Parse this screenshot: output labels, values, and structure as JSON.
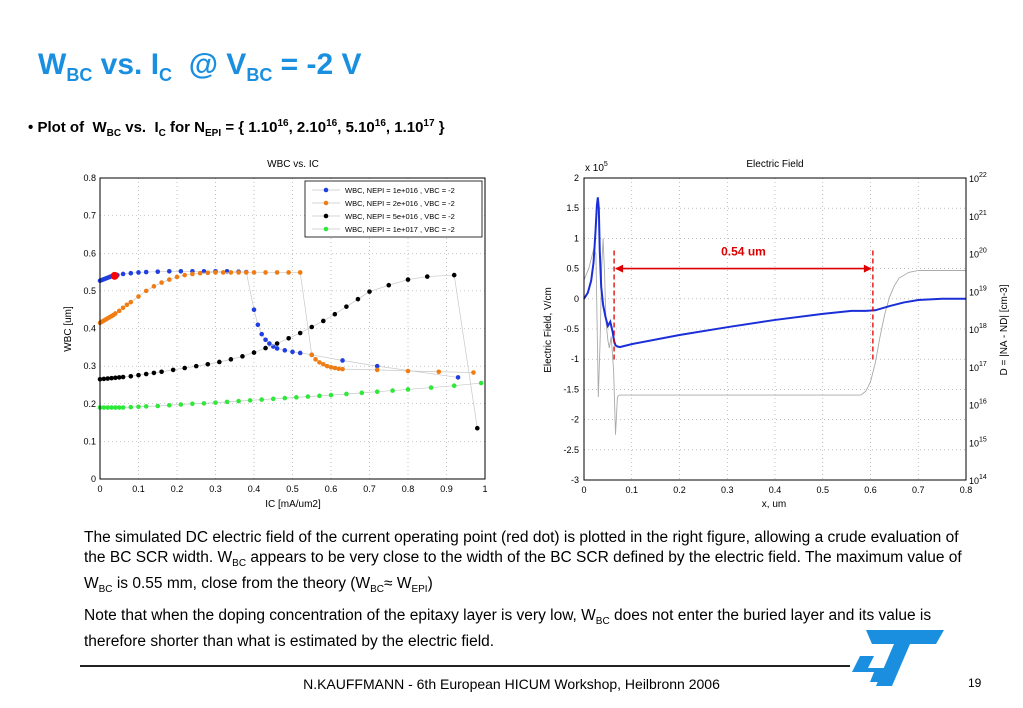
{
  "slide": {
    "title": {
      "w": "W",
      "w_sub": "BC",
      "vs": "vs. I",
      "i_sub": "C",
      "at": "@ V",
      "v_sub": "BC",
      "rest": "= -2 V"
    },
    "bullet": {
      "marker": "•",
      "p1": "Plot of",
      "w": "W",
      "w_sub": "BC",
      "vs": "vs.",
      "i": "I",
      "i_sub": "C",
      "for": "for N",
      "n_sub": "EPI",
      "eq": "= { 1.10",
      "e1": "16",
      "c1": ", 2.10",
      "e2": "16",
      "c2": ", 5.10",
      "e3": "16",
      "c3": ", 1.10",
      "e4": "17",
      "end": "}"
    },
    "para1": {
      "t1": "The simulated DC electric field of the current operating point (red dot) is plotted in the right figure, allowing a crude evaluation of the BC SCR width. W",
      "s1": "BC",
      "t2": " appears to be very close to the width of the BC SCR defined by the electric field. The maximum value of W",
      "s2": "BC",
      "t3": " is 0.55 mm, close from the theory (W",
      "s3": "BC",
      "t4": "≈ W",
      "s4": "EPI",
      "t5": ")"
    },
    "para2": {
      "t1": "Note that when the doping concentration of the epitaxy layer is very low, W",
      "s1": "BC",
      "t2": " does not enter the buried layer and its value is therefore shorter than what is estimated by the electric field."
    },
    "footer": "N.KAUFFMANN - 6th European HICUM Workshop, Heilbronn 2006",
    "page_number": "19"
  },
  "chart_data": [
    {
      "type": "scatter",
      "title": "WBC vs. IC",
      "xlabel": "IC  [mA/um2]",
      "ylabel": "WBC  [um]",
      "xlim": [
        0,
        1
      ],
      "ylim": [
        0,
        0.8
      ],
      "xticks": [
        "0",
        "0.1",
        "0.2",
        "0.3",
        "0.4",
        "0.5",
        "0.6",
        "0.7",
        "0.8",
        "0.9",
        "1"
      ],
      "yticks": [
        "0",
        "0.1",
        "0.2",
        "0.3",
        "0.4",
        "0.5",
        "0.6",
        "0.7",
        "0.8"
      ],
      "legend_position": "top-right",
      "series": [
        {
          "name": "WBC, NEPI = 1e+016 , VBC = -2",
          "color": "#1f3fe0",
          "x": [
            0.0,
            0.005,
            0.01,
            0.015,
            0.02,
            0.025,
            0.03,
            0.035,
            0.045,
            0.06,
            0.08,
            0.1,
            0.12,
            0.15,
            0.18,
            0.21,
            0.24,
            0.27,
            0.3,
            0.33,
            0.36,
            0.38,
            0.4,
            0.41,
            0.42,
            0.43,
            0.44,
            0.45,
            0.46,
            0.48,
            0.5,
            0.52,
            0.55,
            0.63,
            0.72,
            0.93
          ],
          "y": [
            0.527,
            0.529,
            0.531,
            0.533,
            0.535,
            0.537,
            0.539,
            0.54,
            0.542,
            0.545,
            0.547,
            0.549,
            0.55,
            0.551,
            0.552,
            0.552,
            0.552,
            0.552,
            0.552,
            0.552,
            0.551,
            0.55,
            0.45,
            0.41,
            0.385,
            0.37,
            0.36,
            0.352,
            0.347,
            0.342,
            0.338,
            0.335,
            0.33,
            0.315,
            0.3,
            0.27
          ]
        },
        {
          "name": "WBC, NEPI = 2e+016 , VBC = -2",
          "color": "#f07d14",
          "x": [
            0.0,
            0.005,
            0.01,
            0.015,
            0.02,
            0.025,
            0.03,
            0.035,
            0.04,
            0.05,
            0.06,
            0.07,
            0.08,
            0.1,
            0.12,
            0.14,
            0.16,
            0.18,
            0.2,
            0.22,
            0.24,
            0.26,
            0.28,
            0.3,
            0.32,
            0.34,
            0.36,
            0.38,
            0.4,
            0.43,
            0.46,
            0.49,
            0.52,
            0.55,
            0.56,
            0.57,
            0.58,
            0.59,
            0.6,
            0.61,
            0.62,
            0.63,
            0.72,
            0.8,
            0.88,
            0.97
          ],
          "y": [
            0.415,
            0.418,
            0.421,
            0.424,
            0.427,
            0.43,
            0.433,
            0.436,
            0.44,
            0.447,
            0.455,
            0.463,
            0.47,
            0.485,
            0.5,
            0.512,
            0.522,
            0.53,
            0.537,
            0.542,
            0.545,
            0.547,
            0.548,
            0.549,
            0.549,
            0.549,
            0.549,
            0.549,
            0.549,
            0.549,
            0.549,
            0.549,
            0.549,
            0.33,
            0.318,
            0.31,
            0.305,
            0.3,
            0.297,
            0.295,
            0.293,
            0.292,
            0.29,
            0.287,
            0.285,
            0.283
          ]
        },
        {
          "name": "WBC, NEPI = 5e+016 , VBC = -2",
          "color": "#000000",
          "x": [
            0.0,
            0.01,
            0.02,
            0.03,
            0.04,
            0.05,
            0.06,
            0.08,
            0.1,
            0.12,
            0.14,
            0.16,
            0.19,
            0.22,
            0.25,
            0.28,
            0.31,
            0.34,
            0.37,
            0.4,
            0.43,
            0.46,
            0.49,
            0.52,
            0.55,
            0.58,
            0.61,
            0.64,
            0.67,
            0.7,
            0.75,
            0.8,
            0.85,
            0.92,
            0.98
          ],
          "y": [
            0.265,
            0.266,
            0.267,
            0.268,
            0.269,
            0.27,
            0.271,
            0.273,
            0.276,
            0.279,
            0.282,
            0.285,
            0.29,
            0.295,
            0.3,
            0.305,
            0.311,
            0.318,
            0.326,
            0.336,
            0.348,
            0.36,
            0.374,
            0.388,
            0.404,
            0.42,
            0.438,
            0.458,
            0.478,
            0.498,
            0.515,
            0.53,
            0.538,
            0.542,
            0.135
          ]
        },
        {
          "name": "WBC, NEPI = 1e+017 , VBC = -2",
          "color": "#2ee83a",
          "x": [
            0.0,
            0.01,
            0.02,
            0.03,
            0.04,
            0.05,
            0.06,
            0.08,
            0.1,
            0.12,
            0.15,
            0.18,
            0.21,
            0.24,
            0.27,
            0.3,
            0.33,
            0.36,
            0.39,
            0.42,
            0.45,
            0.48,
            0.51,
            0.54,
            0.57,
            0.6,
            0.64,
            0.68,
            0.72,
            0.76,
            0.8,
            0.86,
            0.92,
            0.99
          ],
          "y": [
            0.19,
            0.19,
            0.19,
            0.19,
            0.19,
            0.19,
            0.19,
            0.191,
            0.192,
            0.193,
            0.194,
            0.196,
            0.198,
            0.2,
            0.201,
            0.203,
            0.205,
            0.207,
            0.209,
            0.211,
            0.213,
            0.215,
            0.217,
            0.219,
            0.221,
            0.223,
            0.226,
            0.229,
            0.232,
            0.235,
            0.238,
            0.243,
            0.248,
            0.255
          ]
        }
      ],
      "current_point": {
        "x": 0.038,
        "y": 0.54,
        "color": "#ff0000"
      }
    },
    {
      "type": "line",
      "title": "Electric Field",
      "xlabel": "x, um",
      "ylabel": "Electric Field, V/cm",
      "ylabel_right": "D = |NA - ND| [cm-3]",
      "y_multiplier": {
        "base": "x 10",
        "exp": "5"
      },
      "xlim": [
        0,
        0.8
      ],
      "ylim": [
        -3,
        2
      ],
      "xticks": [
        "0",
        "0.1",
        "0.2",
        "0.3",
        "0.4",
        "0.5",
        "0.6",
        "0.7",
        "0.8"
      ],
      "yticks": [
        "-3",
        "-2.5",
        "-2",
        "-1.5",
        "-1",
        "-0.5",
        "0",
        "0.5",
        "1",
        "1.5",
        "2"
      ],
      "yticks_right": [
        {
          "base": "10",
          "exp": "14"
        },
        {
          "base": "10",
          "exp": "15"
        },
        {
          "base": "10",
          "exp": "16"
        },
        {
          "base": "10",
          "exp": "17"
        },
        {
          "base": "10",
          "exp": "18"
        },
        {
          "base": "10",
          "exp": "19"
        },
        {
          "base": "10",
          "exp": "20"
        },
        {
          "base": "10",
          "exp": "21"
        },
        {
          "base": "10",
          "exp": "22"
        }
      ],
      "y_right_log_range": [
        14,
        22
      ],
      "series": [
        {
          "name": "",
          "color": "#1b2fd8",
          "x": [
            0.0,
            0.008,
            0.015,
            0.02,
            0.024,
            0.027,
            0.029,
            0.031,
            0.033,
            0.036,
            0.04,
            0.045,
            0.05,
            0.055,
            0.06,
            0.063,
            0.066,
            0.07,
            0.075,
            0.08,
            0.1,
            0.2,
            0.3,
            0.4,
            0.5,
            0.56,
            0.59,
            0.61,
            0.64,
            0.67,
            0.7,
            0.75,
            0.8
          ],
          "y": [
            0.0,
            0.1,
            0.3,
            0.6,
            1.1,
            1.55,
            1.68,
            1.5,
            0.8,
            0.2,
            -0.1,
            -0.3,
            -0.45,
            -0.38,
            -0.55,
            -0.7,
            -0.77,
            -0.79,
            -0.8,
            -0.79,
            -0.75,
            -0.6,
            -0.47,
            -0.35,
            -0.25,
            -0.2,
            -0.2,
            -0.19,
            -0.12,
            -0.06,
            -0.02,
            0.0,
            0.0
          ]
        },
        {
          "name": "",
          "color": "#aaaaaa",
          "axis": "right_log",
          "x": [
            0.0,
            0.01,
            0.02,
            0.025,
            0.03,
            0.034,
            0.037,
            0.04,
            0.043,
            0.046,
            0.05,
            0.053,
            0.057,
            0.062,
            0.066,
            0.07,
            0.074,
            0.078,
            0.1,
            0.3,
            0.5,
            0.58,
            0.59,
            0.6,
            0.61,
            0.62,
            0.63,
            0.64,
            0.65,
            0.66,
            0.68,
            0.7,
            0.8
          ],
          "y": [
            19.3,
            19.6,
            20.1,
            20.0,
            16.2,
            17.8,
            19.6,
            20.4,
            19.5,
            18.2,
            17.7,
            17.5,
            17.8,
            16.9,
            15.2,
            16.2,
            16.25,
            16.25,
            16.25,
            16.25,
            16.25,
            16.25,
            16.35,
            16.6,
            17.1,
            17.8,
            18.4,
            18.85,
            19.15,
            19.35,
            19.5,
            19.55,
            19.55
          ]
        }
      ],
      "markers": [
        {
          "x": 0.063,
          "color": "#dd0000"
        },
        {
          "x": 0.605,
          "color": "#dd0000"
        }
      ],
      "annotation": {
        "text": "0.54 um",
        "x1": 0.063,
        "x2": 0.605,
        "y": 0.5,
        "color": "#dd0000"
      }
    }
  ]
}
